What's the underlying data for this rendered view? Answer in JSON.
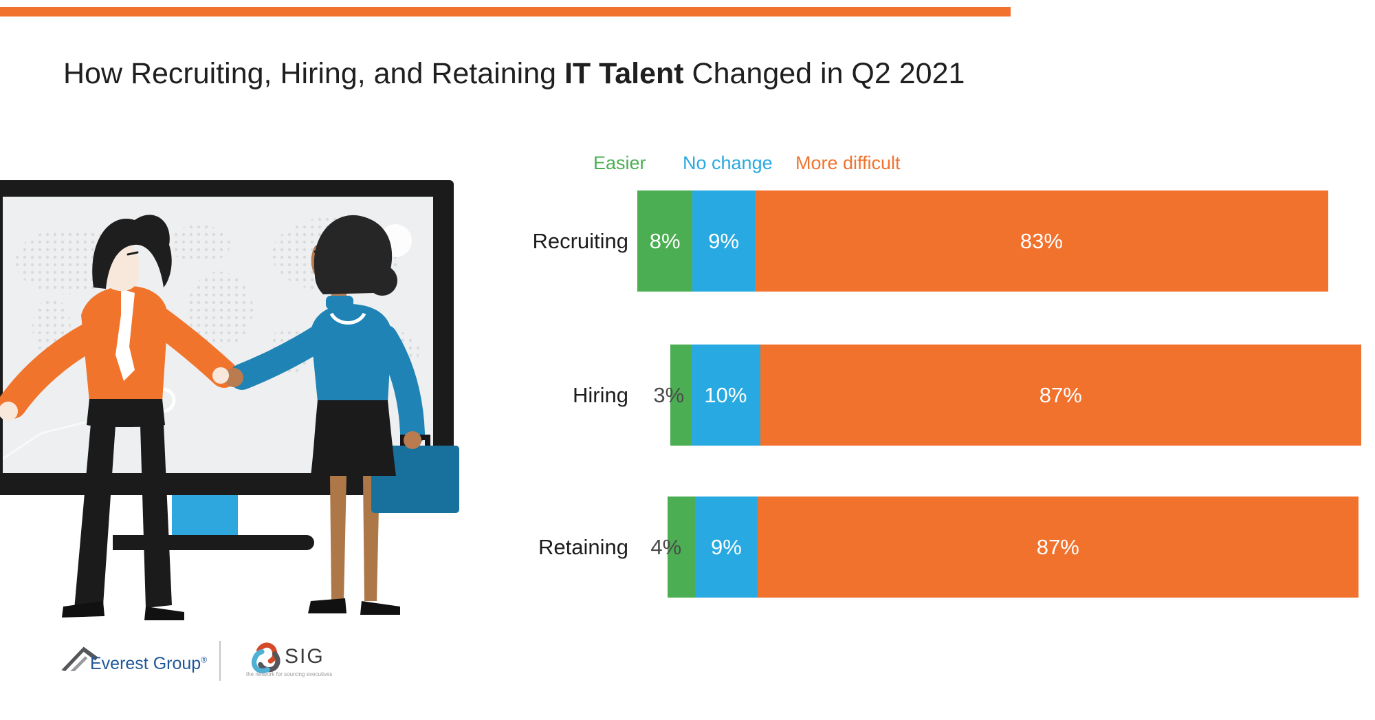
{
  "title": {
    "prefix": "How Recruiting, Hiring, and Retaining ",
    "bold": "IT Talent",
    "suffix": " Changed in Q2 2021"
  },
  "colors": {
    "accent_bar": "#F1722D",
    "easier": "#4CAE52",
    "no_change": "#29A9E1",
    "more_difficult": "#F1722D",
    "title_text": "#1f1f1f",
    "small_label_dark": "#4a4a4a",
    "everest_blue": "#1e5799"
  },
  "chart_data": {
    "type": "bar",
    "stacked": true,
    "orientation": "horizontal",
    "unit": "percent",
    "title": "How Recruiting, Hiring, and Retaining IT Talent Changed in Q2 2021",
    "legend_position": "top",
    "grid": false,
    "xlim": [
      0,
      100
    ],
    "series_names": [
      "Easier",
      "No change",
      "More difficult"
    ],
    "series_colors": [
      "#4CAE52",
      "#29A9E1",
      "#F1722D"
    ],
    "categories": [
      "Recruiting",
      "Hiring",
      "Retaining"
    ],
    "rows": [
      {
        "category": "Recruiting",
        "values": [
          8,
          9,
          83
        ],
        "labels": [
          "8%",
          "9%",
          "83%"
        ]
      },
      {
        "category": "Hiring",
        "values": [
          3,
          10,
          87
        ],
        "labels": [
          "3%",
          "10%",
          "87%"
        ]
      },
      {
        "category": "Retaining",
        "values": [
          4,
          9,
          87
        ],
        "labels": [
          "4%",
          "9%",
          "87%"
        ]
      }
    ]
  },
  "footer": {
    "everest_label": "Everest Group",
    "registered_mark": "®",
    "sig_label": "SIG",
    "sig_tagline": "the network for sourcing executives"
  },
  "illustration": {
    "description": "Two businesspeople shaking hands in front of a presentation screen showing a dotted world map; man in orange shirt and tie, woman in blue turtleneck holding a teal briefcase"
  }
}
